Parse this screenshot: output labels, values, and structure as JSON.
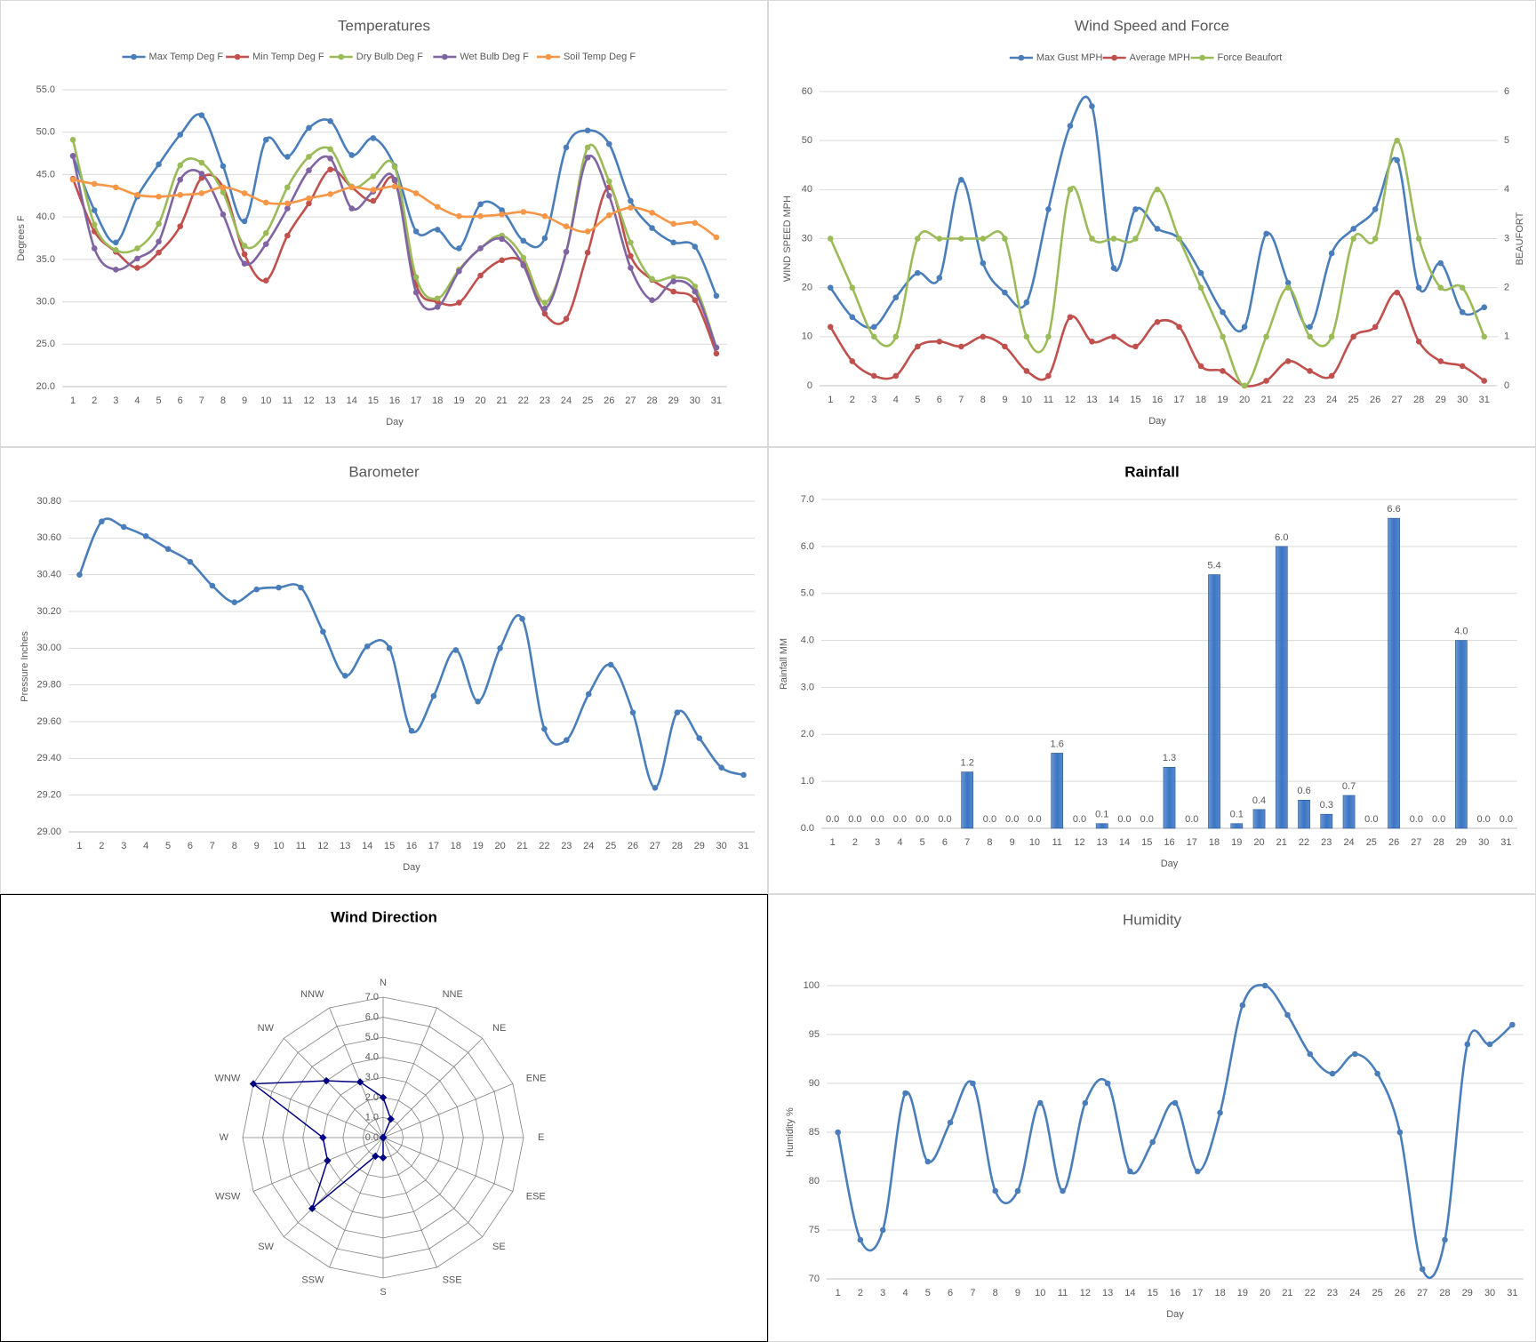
{
  "chart_data": [
    {
      "type": "line",
      "title": "Temperatures",
      "x_label": "Day",
      "y_label": "Degrees F",
      "legend": "top",
      "grid": true,
      "categories": [
        "1",
        "2",
        "3",
        "4",
        "5",
        "6",
        "7",
        "8",
        "9",
        "10",
        "11",
        "12",
        "13",
        "14",
        "15",
        "16",
        "17",
        "18",
        "19",
        "20",
        "21",
        "22",
        "23",
        "24",
        "25",
        "26",
        "27",
        "28",
        "29",
        "30",
        "31"
      ],
      "ylim": [
        20,
        55
      ],
      "yticks": [
        {
          "value": 20,
          "label": "20.0"
        },
        {
          "value": 25,
          "label": "25.0"
        },
        {
          "value": 30,
          "label": "30.0"
        },
        {
          "value": 35,
          "label": "35.0"
        },
        {
          "value": 40,
          "label": "40.0"
        },
        {
          "value": 45,
          "label": "45.0"
        },
        {
          "value": 50,
          "label": "50.0"
        },
        {
          "value": 55,
          "label": "55.0"
        }
      ],
      "series": [
        {
          "name": "Max Temp Deg F",
          "color": "#4a7ebb",
          "values": [
            47.2,
            40.8,
            37.0,
            42.4,
            46.2,
            49.7,
            52.0,
            46.0,
            39.5,
            49.1,
            47.1,
            50.5,
            51.3,
            47.3,
            49.3,
            46.0,
            38.3,
            38.5,
            36.3,
            41.5,
            40.8,
            37.2,
            37.5,
            48.2,
            50.2,
            48.6,
            41.9,
            38.7,
            37.0,
            36.5,
            30.7
          ]
        },
        {
          "name": "Min Temp Deg F",
          "color": "#c0504d",
          "values": [
            44.5,
            38.3,
            35.9,
            34.0,
            35.8,
            38.9,
            44.6,
            43.5,
            35.6,
            32.5,
            37.8,
            41.6,
            45.6,
            43.5,
            41.9,
            44.3,
            32.0,
            30.0,
            29.9,
            33.1,
            34.9,
            34.5,
            28.6,
            28.0,
            35.8,
            43.5,
            35.4,
            32.6,
            31.2,
            30.2,
            23.9
          ]
        },
        {
          "name": "Dry Bulb Deg F",
          "color": "#9bbb59",
          "values": [
            49.1,
            39.1,
            36.1,
            36.3,
            39.2,
            46.1,
            46.4,
            42.9,
            36.6,
            38.1,
            43.5,
            47.1,
            48.0,
            43.6,
            44.8,
            45.9,
            32.9,
            30.4,
            33.8,
            36.3,
            37.8,
            35.2,
            29.9,
            35.9,
            48.2,
            44.2,
            37.0,
            32.7,
            32.9,
            31.8,
            24.6
          ]
        },
        {
          "name": "Wet Bulb Deg F",
          "color": "#8064a2",
          "values": [
            47.2,
            36.3,
            33.8,
            35.1,
            37.1,
            44.4,
            45.1,
            40.3,
            34.5,
            36.8,
            41.0,
            45.5,
            46.9,
            41.0,
            43.0,
            44.4,
            31.1,
            29.4,
            33.6,
            36.3,
            37.4,
            34.3,
            29.2,
            35.9,
            47.0,
            42.5,
            34.0,
            30.2,
            32.4,
            31.2,
            24.6
          ]
        },
        {
          "name": "Soil Temp Deg F",
          "color": "#f79646",
          "values": [
            44.4,
            43.9,
            43.5,
            42.6,
            42.4,
            42.6,
            42.8,
            43.5,
            42.8,
            41.7,
            41.6,
            42.2,
            42.7,
            43.5,
            43.2,
            43.6,
            42.8,
            41.2,
            40.1,
            40.1,
            40.3,
            40.6,
            40.1,
            38.9,
            38.3,
            40.2,
            41.1,
            40.5,
            39.2,
            39.3,
            37.6
          ]
        }
      ]
    },
    {
      "type": "line",
      "title": "Wind Speed and Force",
      "x_label": "Day",
      "y_label": "WIND SPEED MPH",
      "y2_label": "BEAUFORT",
      "legend": "top",
      "grid": true,
      "categories": [
        "1",
        "2",
        "3",
        "4",
        "5",
        "6",
        "7",
        "8",
        "9",
        "10",
        "11",
        "12",
        "13",
        "14",
        "15",
        "16",
        "17",
        "18",
        "19",
        "20",
        "21",
        "22",
        "23",
        "24",
        "25",
        "26",
        "27",
        "28",
        "29",
        "30",
        "31"
      ],
      "ylim": [
        0,
        60
      ],
      "yticks": [
        0,
        10,
        20,
        30,
        40,
        50,
        60
      ],
      "y2lim": [
        0,
        6
      ],
      "y2ticks": [
        0,
        1,
        2,
        3,
        4,
        5,
        6
      ],
      "series": [
        {
          "name": "Max Gust MPH",
          "color": "#4a7ebb",
          "values": [
            20,
            14,
            12,
            18,
            23,
            22,
            42,
            25,
            19,
            17,
            36,
            53,
            57,
            24,
            36,
            32,
            30,
            23,
            15,
            12,
            31,
            21,
            12,
            27,
            32,
            36,
            46,
            20,
            25,
            15,
            16
          ]
        },
        {
          "name": "Average MPH",
          "color": "#c0504d",
          "values": [
            12,
            5,
            2,
            2,
            8,
            9,
            8,
            10,
            8,
            3,
            2,
            14,
            9,
            10,
            8,
            13,
            12,
            4,
            3,
            0,
            1,
            5,
            3,
            2,
            10,
            12,
            19,
            9,
            5,
            4,
            1
          ]
        },
        {
          "name": "Force Beaufort",
          "color": "#9bbb59",
          "axis": "y2",
          "values": [
            3,
            2,
            1,
            1,
            3,
            3,
            3,
            3,
            3,
            1,
            1,
            4,
            3,
            3,
            3,
            4,
            3,
            2,
            1,
            0,
            1,
            2,
            1,
            1,
            3,
            3,
            5,
            3,
            2,
            2,
            1
          ]
        }
      ]
    },
    {
      "type": "line",
      "title": "Barometer",
      "x_label": "Day",
      "y_label": "Pressure Inches",
      "grid": true,
      "color": "#4a7ebb",
      "categories": [
        "1",
        "2",
        "3",
        "4",
        "5",
        "6",
        "7",
        "8",
        "9",
        "10",
        "11",
        "12",
        "13",
        "14",
        "15",
        "16",
        "17",
        "18",
        "19",
        "20",
        "21",
        "22",
        "23",
        "24",
        "25",
        "26",
        "27",
        "28",
        "29",
        "30",
        "31"
      ],
      "ylim": [
        29.0,
        30.8
      ],
      "yticks": [
        {
          "value": 29.0,
          "label": "29.00"
        },
        {
          "value": 29.2,
          "label": "29.20"
        },
        {
          "value": 29.4,
          "label": "29.40"
        },
        {
          "value": 29.6,
          "label": "29.60"
        },
        {
          "value": 29.8,
          "label": "29.80"
        },
        {
          "value": 30.0,
          "label": "30.00"
        },
        {
          "value": 30.2,
          "label": "30.20"
        },
        {
          "value": 30.4,
          "label": "30.40"
        },
        {
          "value": 30.6,
          "label": "30.60"
        },
        {
          "value": 30.8,
          "label": "30.80"
        }
      ],
      "values": [
        30.4,
        30.69,
        30.66,
        30.61,
        30.54,
        30.47,
        30.34,
        30.25,
        30.32,
        30.33,
        30.33,
        30.09,
        29.85,
        30.01,
        30.0,
        29.55,
        29.74,
        29.99,
        29.71,
        30.0,
        30.16,
        29.56,
        29.5,
        29.75,
        29.91,
        29.65,
        29.24,
        29.65,
        29.51,
        29.35,
        29.31
      ]
    },
    {
      "type": "bar",
      "title": "Rainfall",
      "x_label": "Day",
      "y_label": "Rainfall MM",
      "grid": true,
      "color": "#3a75c4",
      "categories": [
        "1",
        "2",
        "3",
        "4",
        "5",
        "6",
        "7",
        "8",
        "9",
        "10",
        "11",
        "12",
        "13",
        "14",
        "15",
        "16",
        "17",
        "18",
        "19",
        "20",
        "21",
        "22",
        "23",
        "24",
        "25",
        "26",
        "27",
        "28",
        "29",
        "30",
        "31"
      ],
      "ylim": [
        0,
        7
      ],
      "yticks": [
        {
          "value": 0,
          "label": "0.0"
        },
        {
          "value": 1,
          "label": "1.0"
        },
        {
          "value": 2,
          "label": "2.0"
        },
        {
          "value": 3,
          "label": "3.0"
        },
        {
          "value": 4,
          "label": "4.0"
        },
        {
          "value": 5,
          "label": "5.0"
        },
        {
          "value": 6,
          "label": "6.0"
        },
        {
          "value": 7,
          "label": "7.0"
        }
      ],
      "values": [
        0,
        0,
        0,
        0,
        0,
        0,
        1.2,
        0,
        0,
        0,
        1.6,
        0,
        0.1,
        0,
        0,
        1.3,
        0,
        5.4,
        0.1,
        0.4,
        6.0,
        0.6,
        0.3,
        0.7,
        0,
        6.6,
        0,
        0,
        4.0,
        0,
        0
      ],
      "value_labels": [
        "0.0",
        "0.0",
        "0.0",
        "0.0",
        "0.0",
        "0.0",
        "1.2",
        "0.0",
        "0.0",
        "0.0",
        "1.6",
        "0.0",
        "0.1",
        "0.0",
        "0.0",
        "1.3",
        "0.0",
        "5.4",
        "0.1",
        "0.4",
        "6.0",
        "0.6",
        "0.3",
        "0.7",
        "0.0",
        "6.6",
        "0.0",
        "0.0",
        "4.0",
        "0.0",
        "0.0"
      ]
    },
    {
      "type": "radar",
      "title": "Wind Direction",
      "color": "#000080",
      "categories": [
        "N",
        "NNE",
        "NE",
        "ENE",
        "E",
        "ESE",
        "SE",
        "SSE",
        "S",
        "SSW",
        "SW",
        "WSW",
        "W",
        "WNW",
        "NW",
        "NNW"
      ],
      "ylim": [
        0,
        7
      ],
      "yticks": [
        {
          "value": 0,
          "label": "0.0"
        },
        {
          "value": 1,
          "label": "1.0"
        },
        {
          "value": 2,
          "label": "2.0"
        },
        {
          "value": 3,
          "label": "3.0"
        },
        {
          "value": 4,
          "label": "4.0"
        },
        {
          "value": 5,
          "label": "5.0"
        },
        {
          "value": 6,
          "label": "6.0"
        },
        {
          "value": 7,
          "label": "7.0"
        }
      ],
      "values": [
        2,
        1,
        0,
        0,
        0,
        0,
        0,
        0,
        1,
        1,
        5,
        3,
        3,
        7,
        4,
        3
      ]
    },
    {
      "type": "line",
      "title": "Humidity",
      "x_label": "Day",
      "y_label": "Humidity %",
      "grid": true,
      "color": "#4a7ebb",
      "categories": [
        "1",
        "2",
        "3",
        "4",
        "5",
        "6",
        "7",
        "8",
        "9",
        "10",
        "11",
        "12",
        "13",
        "14",
        "15",
        "16",
        "17",
        "18",
        "19",
        "20",
        "21",
        "22",
        "23",
        "24",
        "25",
        "26",
        "27",
        "28",
        "29",
        "30",
        "31"
      ],
      "ylim": [
        70,
        100
      ],
      "yticks": [
        70,
        75,
        80,
        85,
        90,
        95,
        100
      ],
      "values": [
        85,
        74,
        75,
        89,
        82,
        86,
        90,
        79,
        79,
        88,
        79,
        88,
        90,
        81,
        84,
        88,
        81,
        87,
        98,
        100,
        97,
        93,
        91,
        93,
        91,
        85,
        71,
        74,
        94,
        94,
        96
      ]
    }
  ]
}
